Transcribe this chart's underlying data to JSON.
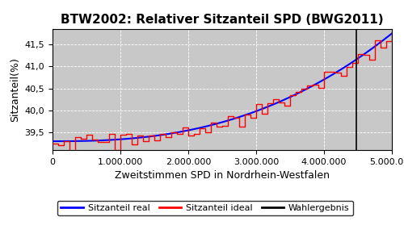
{
  "title": "BTW2002: Relativer Sitzanteil SPD (BWG2011)",
  "xlabel": "Zweitstimmen SPD in Nordrhein-Westfalen",
  "ylabel": "Sitzanteil(%)",
  "x_min": 0,
  "x_max": 5000000,
  "y_min": 39.1,
  "y_max": 41.85,
  "wahlergebnis_x": 4480000,
  "legend_labels": [
    "Sitzanteil real",
    "Sitzanteil ideal",
    "Wahlergebnis"
  ],
  "legend_colors": [
    "red",
    "blue",
    "black"
  ],
  "yticks": [
    39.5,
    40.0,
    40.5,
    41.0,
    41.5
  ],
  "xticks": [
    0,
    1000000,
    2000000,
    3000000,
    4000000,
    5000000
  ],
  "background_color": "#c8c8c8",
  "title_fontsize": 11,
  "axis_label_fontsize": 9,
  "ideal_start": 39.3,
  "ideal_end": 41.75,
  "ideal_power": 2.5,
  "step_count": 60,
  "noise_amplitude": 0.15
}
